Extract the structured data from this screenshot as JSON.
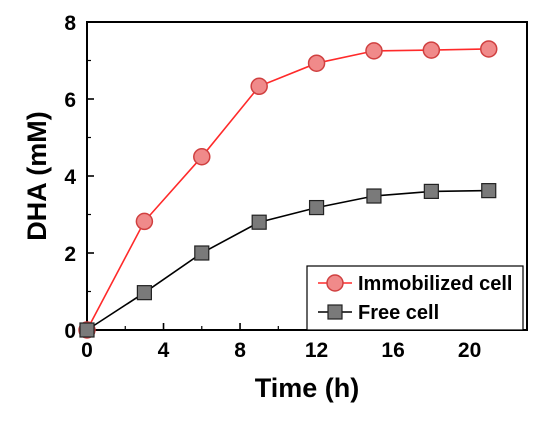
{
  "chart_data": {
    "type": "line",
    "title": "",
    "xlabel": "Time (h)",
    "ylabel": "DHA (mM)",
    "xlim": [
      0,
      23
    ],
    "ylim": [
      0,
      8
    ],
    "xticks": [
      0,
      4,
      8,
      12,
      16,
      20
    ],
    "yticks": [
      0,
      2,
      4,
      6,
      8
    ],
    "x_tick_labels": [
      "0",
      "4",
      "8",
      "12",
      "16",
      "20"
    ],
    "y_tick_labels": [
      "0",
      "2",
      "4",
      "6",
      "8"
    ],
    "grid": false,
    "legend_position": "bottom-right",
    "series": [
      {
        "name": "Immobilized cell",
        "marker": "circle",
        "line_color": "#ff2a2a",
        "marker_fill": "#f08a8a",
        "marker_edge": "#d04040",
        "x": [
          0,
          3,
          6,
          9,
          12,
          15,
          18,
          21
        ],
        "y": [
          0,
          2.82,
          4.5,
          6.33,
          6.93,
          7.25,
          7.27,
          7.3
        ]
      },
      {
        "name": "Free cell",
        "marker": "square",
        "line_color": "#000000",
        "marker_fill": "#7a7a7a",
        "marker_edge": "#222222",
        "x": [
          0,
          3,
          6,
          9,
          12,
          15,
          18,
          21
        ],
        "y": [
          0,
          0.97,
          2.0,
          2.8,
          3.18,
          3.48,
          3.6,
          3.62
        ]
      }
    ]
  }
}
